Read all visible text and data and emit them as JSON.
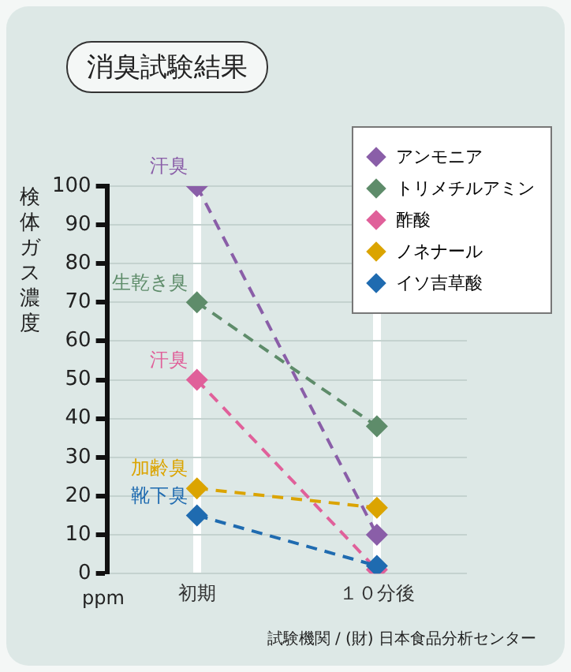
{
  "chart_data": {
    "type": "line",
    "title": "消臭試験結果",
    "ylabel": "検体ガス濃度",
    "categories": [
      "初期",
      "１０分後"
    ],
    "series": [
      {
        "name": "アンモニア",
        "color": "#8a5ea8",
        "values": [
          100,
          10
        ]
      },
      {
        "name": "トリメチルアミン",
        "color": "#5e8c6a",
        "values": [
          70,
          38
        ]
      },
      {
        "name": "酢酸",
        "color": "#e0609a",
        "values": [
          50,
          1
        ]
      },
      {
        "name": "ノネナール",
        "color": "#dba400",
        "values": [
          22,
          17
        ]
      },
      {
        "name": "イソ吉草酸",
        "color": "#1f6bb0",
        "values": [
          15,
          2
        ]
      }
    ],
    "ylim": [
      0,
      100
    ],
    "yticks": [
      0,
      10,
      20,
      30,
      40,
      50,
      60,
      70,
      80,
      90,
      100
    ],
    "annotations": [
      {
        "text": "汗臭",
        "x": "初期",
        "y": 100
      },
      {
        "text": "生乾き臭",
        "x": "初期",
        "y": 70
      },
      {
        "text": "汗臭",
        "x": "初期",
        "y": 50
      },
      {
        "text": "加齢臭",
        "x": "初期",
        "y": 22
      },
      {
        "text": "靴下臭",
        "x": "初期",
        "y": 15
      },
      "ppm",
      "試験機関 / (財) 日本食品分析センター"
    ],
    "grid": true,
    "legend": "top right",
    "marker": "diamond",
    "line_style": "dashed"
  }
}
